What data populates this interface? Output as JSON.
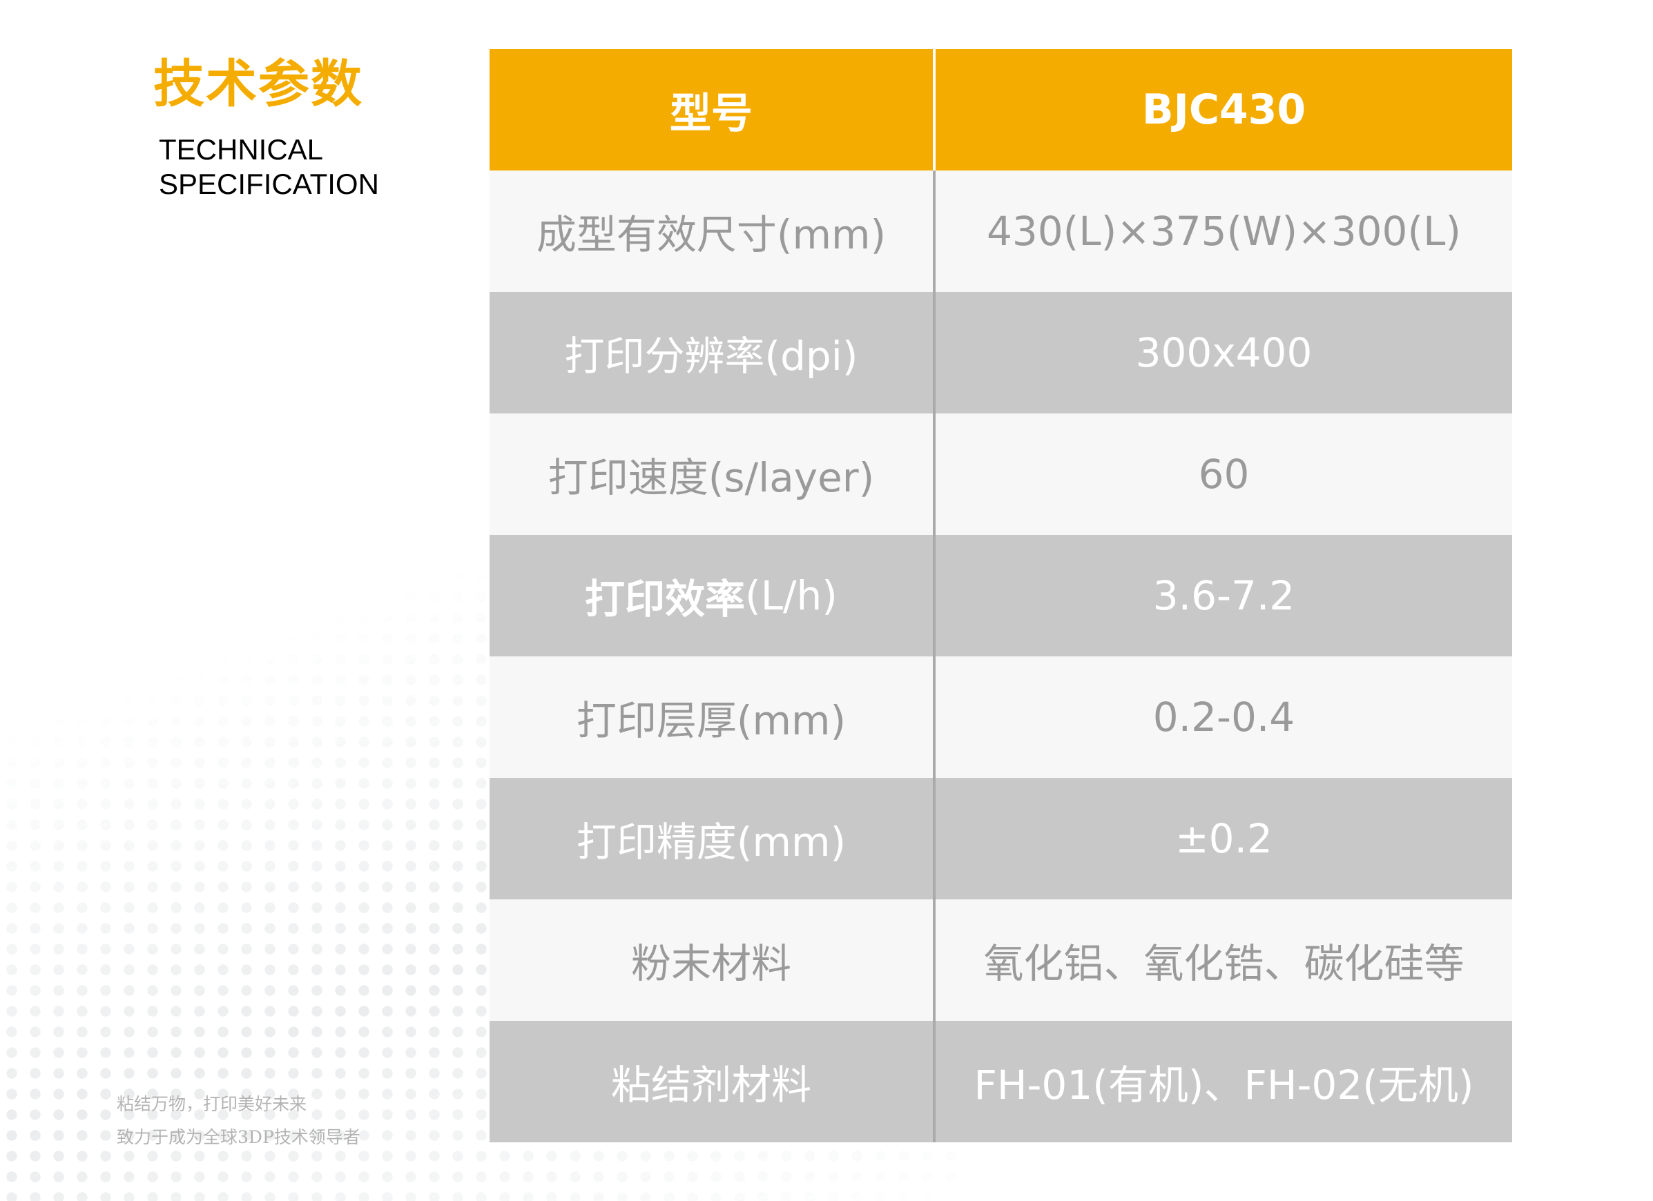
{
  "title": {
    "cn": "技术参数",
    "en_line1": "TECHNICAL",
    "en_line2": "SPECIFICATION"
  },
  "slogan": {
    "line1": "粘结万物，打印美好未来",
    "line2": "致力于成为全球3DP技术领导者"
  },
  "colors": {
    "accent": "#f5ac00",
    "row_light": "#f7f7f7",
    "row_dark": "#c8c8c8"
  },
  "table": {
    "header": {
      "label": "型号",
      "value": "BJC430"
    },
    "rows": [
      {
        "label": "成型有效尺寸(mm)",
        "value": "430(L)×375(W)×300(L)"
      },
      {
        "label": "打印分辨率(dpi)",
        "value": "300x400"
      },
      {
        "label": "打印速度(s/layer)",
        "value": "60"
      },
      {
        "label_bold": "打印效率",
        "label_rest": "(L/h)",
        "value": "3.6-7.2"
      },
      {
        "label": "打印层厚(mm)",
        "value": "0.2-0.4"
      },
      {
        "label": "打印精度(mm)",
        "value": "±0.2"
      },
      {
        "label": "粉末材料",
        "value": "氧化铝、氧化锆、碳化硅等"
      },
      {
        "label": "粘结剂材料",
        "value": "FH-01(有机)、FH-02(无机)"
      }
    ]
  }
}
